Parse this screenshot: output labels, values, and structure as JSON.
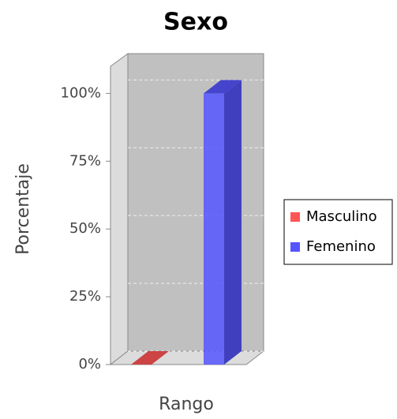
{
  "chart_data": {
    "type": "bar3d",
    "title": "Sexo",
    "x_label": "Rango",
    "y_label": "Porcentaje",
    "categories": [
      null
    ],
    "series": [
      {
        "name": "Masculino",
        "color": "#ff5555",
        "values": [
          0
        ]
      },
      {
        "name": "Femenino",
        "color": "#5555ff",
        "values": [
          100
        ]
      }
    ],
    "ylim": [
      0,
      110
    ],
    "yticks": [
      {
        "value": 0,
        "label": "0%"
      },
      {
        "value": 25,
        "label": "25%"
      },
      {
        "value": 50,
        "label": "50%"
      },
      {
        "value": 75,
        "label": "75%"
      },
      {
        "value": 100,
        "label": "100%"
      }
    ],
    "grid": true,
    "legend": "right"
  }
}
